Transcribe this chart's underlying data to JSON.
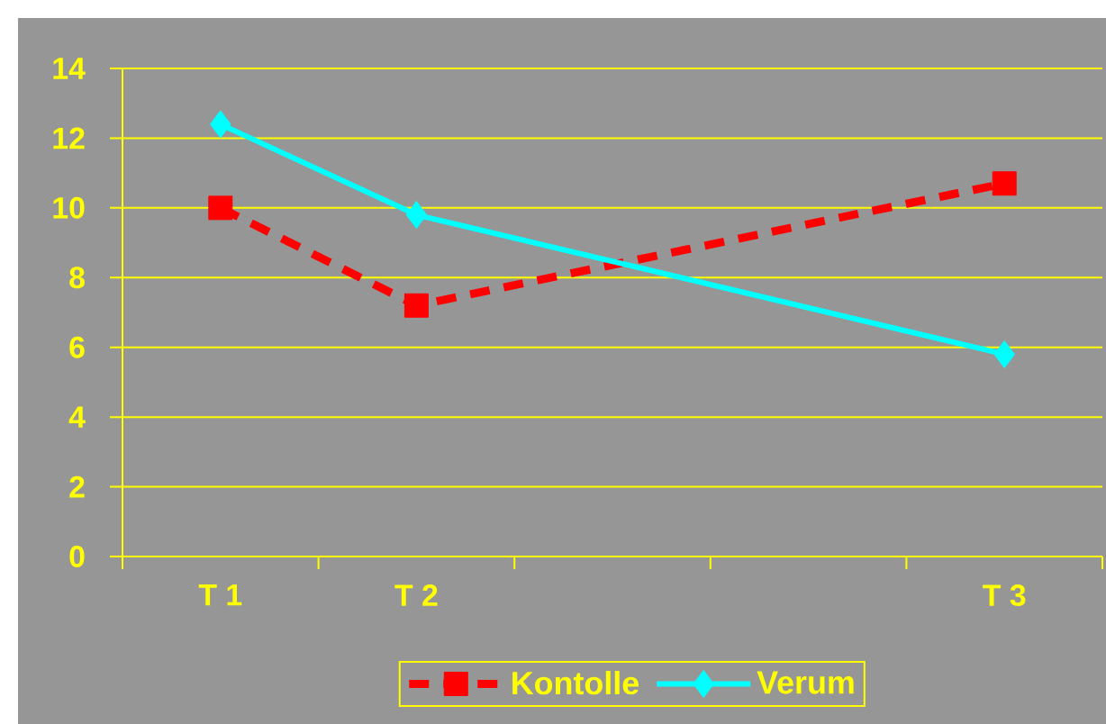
{
  "chart_data": {
    "type": "line",
    "categories": [
      "T 1",
      "T 2",
      null,
      null,
      "T 3"
    ],
    "series": [
      {
        "name": "Kontolle",
        "color": "#ff0000",
        "values": [
          10,
          7.2,
          null,
          null,
          10.7
        ],
        "marker": "square",
        "line_style": "dashed"
      },
      {
        "name": "Verum",
        "color": "#00ffff",
        "values": [
          12.4,
          9.8,
          null,
          null,
          5.8
        ],
        "marker": "diamond",
        "line_style": "solid"
      }
    ],
    "ylim": [
      0,
      14
    ],
    "yticks": [
      0,
      2,
      4,
      6,
      8,
      10,
      12,
      14
    ],
    "grid": "y",
    "legend": "bottom"
  }
}
